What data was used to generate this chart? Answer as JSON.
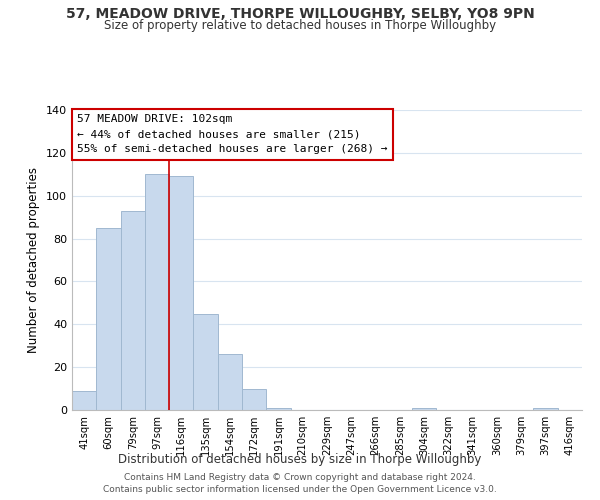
{
  "title": "57, MEADOW DRIVE, THORPE WILLOUGHBY, SELBY, YO8 9PN",
  "subtitle": "Size of property relative to detached houses in Thorpe Willoughby",
  "xlabel": "Distribution of detached houses by size in Thorpe Willoughby",
  "ylabel": "Number of detached properties",
  "bin_labels": [
    "41sqm",
    "60sqm",
    "79sqm",
    "97sqm",
    "116sqm",
    "135sqm",
    "154sqm",
    "172sqm",
    "191sqm",
    "210sqm",
    "229sqm",
    "247sqm",
    "266sqm",
    "285sqm",
    "304sqm",
    "322sqm",
    "341sqm",
    "360sqm",
    "379sqm",
    "397sqm",
    "416sqm"
  ],
  "bar_values": [
    9,
    85,
    93,
    110,
    109,
    45,
    26,
    10,
    1,
    0,
    0,
    0,
    0,
    0,
    1,
    0,
    0,
    0,
    0,
    1,
    0
  ],
  "bar_color": "#c8d9ed",
  "bar_edge_color": "#a0b8d0",
  "vline_x_index": 3,
  "annotation_lines": [
    "57 MEADOW DRIVE: 102sqm",
    "← 44% of detached houses are smaller (215)",
    "55% of semi-detached houses are larger (268) →"
  ],
  "annotation_box_color": "#ffffff",
  "annotation_box_edge_color": "#cc0000",
  "vline_color": "#cc0000",
  "ylim": [
    0,
    140
  ],
  "yticks": [
    0,
    20,
    40,
    60,
    80,
    100,
    120,
    140
  ],
  "footer_line1": "Contains HM Land Registry data © Crown copyright and database right 2024.",
  "footer_line2": "Contains public sector information licensed under the Open Government Licence v3.0.",
  "background_color": "#ffffff",
  "grid_color": "#d8e4f0"
}
